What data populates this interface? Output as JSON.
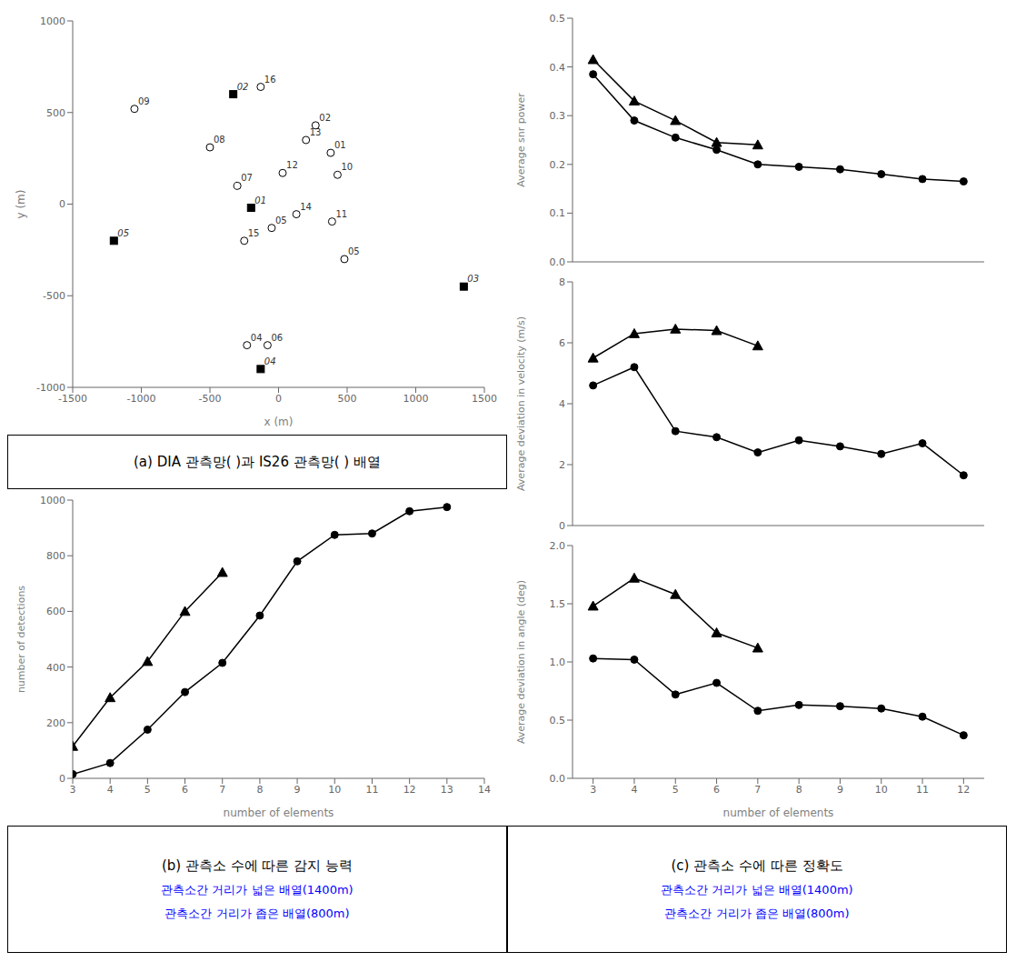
{
  "chart_data": [
    {
      "type": "scatter",
      "xlabel": "x (m)",
      "ylabel": "y (m)",
      "xlim": [
        -1500,
        1500
      ],
      "ylim": [
        -1000,
        1000
      ],
      "xticks": [
        -1500,
        -1000,
        -500,
        0,
        500,
        1000,
        1500
      ],
      "yticks": [
        -1000,
        -500,
        0,
        500,
        1000
      ],
      "grid": false,
      "series": [
        {
          "marker": "open_circle",
          "color": "black",
          "x": [
            -1050,
            -500,
            -300,
            -250,
            -80,
            30,
            200,
            380,
            430,
            480,
            130,
            270,
            390,
            -50,
            -230,
            -130
          ],
          "values": [
            520,
            310,
            100,
            -200,
            -770,
            170,
            350,
            280,
            160,
            -300,
            -55,
            430,
            -95,
            -130,
            -770,
            640
          ],
          "labels": [
            "09",
            "08",
            "07",
            "15",
            "06",
            "12",
            "13",
            "01",
            "10",
            "05",
            "14",
            "02",
            "11",
            "05",
            "04",
            "16"
          ]
        },
        {
          "marker": "square",
          "color": "black",
          "x": [
            -330,
            -1200,
            -200,
            1350,
            -130
          ],
          "values": [
            600,
            -200,
            -20,
            -450,
            -900
          ],
          "labels": [
            "02",
            "05",
            "01",
            "03",
            "04"
          ]
        }
      ],
      "annotations": [
        {
          "text": "(a)  DIA  관측망(    )과  IS26  관측망(    )  배열"
        }
      ]
    },
    {
      "type": "line",
      "xlabel": "number of elements",
      "ylabel": "number of detections",
      "xlim": [
        3,
        14
      ],
      "ylim": [
        0,
        1000
      ],
      "xticks": [
        3,
        4,
        5,
        6,
        7,
        8,
        9,
        10,
        11,
        12,
        13,
        14
      ],
      "yticks": [
        0,
        200,
        400,
        600,
        800,
        1000
      ],
      "grid": false,
      "series": [
        {
          "marker": "triangle",
          "color": "black",
          "x": [
            3,
            4,
            5,
            6,
            7
          ],
          "values": [
            115,
            290,
            420,
            600,
            740
          ]
        },
        {
          "marker": "circle",
          "color": "black",
          "x": [
            3,
            4,
            5,
            6,
            7,
            8,
            9,
            10,
            11,
            12,
            13
          ],
          "values": [
            15,
            55,
            175,
            310,
            415,
            585,
            780,
            875,
            880,
            960,
            975
          ]
        }
      ],
      "annotations": [
        {
          "text": "(b)  관측소 수에 따른 감지 능력"
        },
        {
          "text": "관측소간 거리가 넓은 배열(1400m)",
          "color": "blue"
        },
        {
          "text": "관측소간 거리가 좁은 배열(800m)",
          "color": "blue"
        }
      ]
    },
    {
      "type": "line",
      "ylabel": "Average snr power",
      "xlim": [
        2.5,
        12.5
      ],
      "ylim": [
        0,
        0.5
      ],
      "xticks": [
        3,
        4,
        5,
        6,
        7,
        8,
        9,
        10,
        11,
        12
      ],
      "yticks": [
        {
          "value": 0,
          "label": "0.0"
        },
        0.1,
        0.2,
        0.3,
        0.4,
        0.5
      ],
      "grid": false,
      "tick_labels": "y",
      "series": [
        {
          "marker": "circle",
          "color": "black",
          "x": [
            3,
            4,
            5,
            6,
            7,
            8,
            9,
            10,
            11,
            12
          ],
          "values": [
            0.385,
            0.29,
            0.255,
            0.23,
            0.2,
            0.195,
            0.19,
            0.18,
            0.17,
            0.165
          ]
        },
        {
          "marker": "triangle",
          "color": "black",
          "x": [
            3,
            4,
            5,
            6,
            7
          ],
          "values": [
            0.415,
            0.33,
            0.29,
            0.245,
            0.24
          ]
        }
      ]
    },
    {
      "type": "line",
      "ylabel": "Average deviation in velocity (m/s)",
      "xlim": [
        2.5,
        12.5
      ],
      "ylim": [
        0,
        8
      ],
      "xticks": [
        3,
        4,
        5,
        6,
        7,
        8,
        9,
        10,
        11,
        12
      ],
      "yticks": [
        0,
        2,
        4,
        6,
        8
      ],
      "grid": false,
      "tick_labels": "y",
      "series": [
        {
          "marker": "circle",
          "color": "black",
          "x": [
            3,
            4,
            5,
            6,
            7,
            8,
            9,
            10,
            11,
            12
          ],
          "values": [
            4.6,
            5.2,
            3.1,
            2.9,
            2.4,
            2.8,
            2.6,
            2.35,
            2.7,
            1.65
          ]
        },
        {
          "marker": "triangle",
          "color": "black",
          "x": [
            3,
            4,
            5,
            6,
            7
          ],
          "values": [
            5.5,
            6.3,
            6.45,
            6.4,
            5.9
          ]
        }
      ]
    },
    {
      "type": "line",
      "xlabel": "number of elements",
      "ylabel": "Average deviation in angle (deg)",
      "xlim": [
        2.5,
        12.5
      ],
      "ylim": [
        0,
        2
      ],
      "xticks": [
        3,
        4,
        5,
        6,
        7,
        8,
        9,
        10,
        11,
        12
      ],
      "yticks": [
        {
          "value": 0,
          "label": "0.0"
        },
        0.5,
        {
          "value": 1,
          "label": "1.0"
        },
        1.5,
        {
          "value": 2,
          "label": "2.0"
        }
      ],
      "grid": false,
      "series": [
        {
          "marker": "circle",
          "color": "black",
          "x": [
            3,
            4,
            5,
            6,
            7,
            8,
            9,
            10,
            11,
            12
          ],
          "values": [
            1.03,
            1.02,
            0.72,
            0.82,
            0.58,
            0.63,
            0.62,
            0.6,
            0.53,
            0.37
          ]
        },
        {
          "marker": "triangle",
          "color": "black",
          "x": [
            3,
            4,
            5,
            6,
            7
          ],
          "values": [
            1.48,
            1.72,
            1.58,
            1.25,
            1.12
          ]
        }
      ],
      "annotations": [
        {
          "text": "(c)  관측소 수에 따른 정확도"
        },
        {
          "text": "관측소간 거리가 넓은 배열(1400m)",
          "color": "blue"
        },
        {
          "text": "관측소간 거리가 좁은 배열(800m)",
          "color": "blue"
        }
      ]
    }
  ]
}
